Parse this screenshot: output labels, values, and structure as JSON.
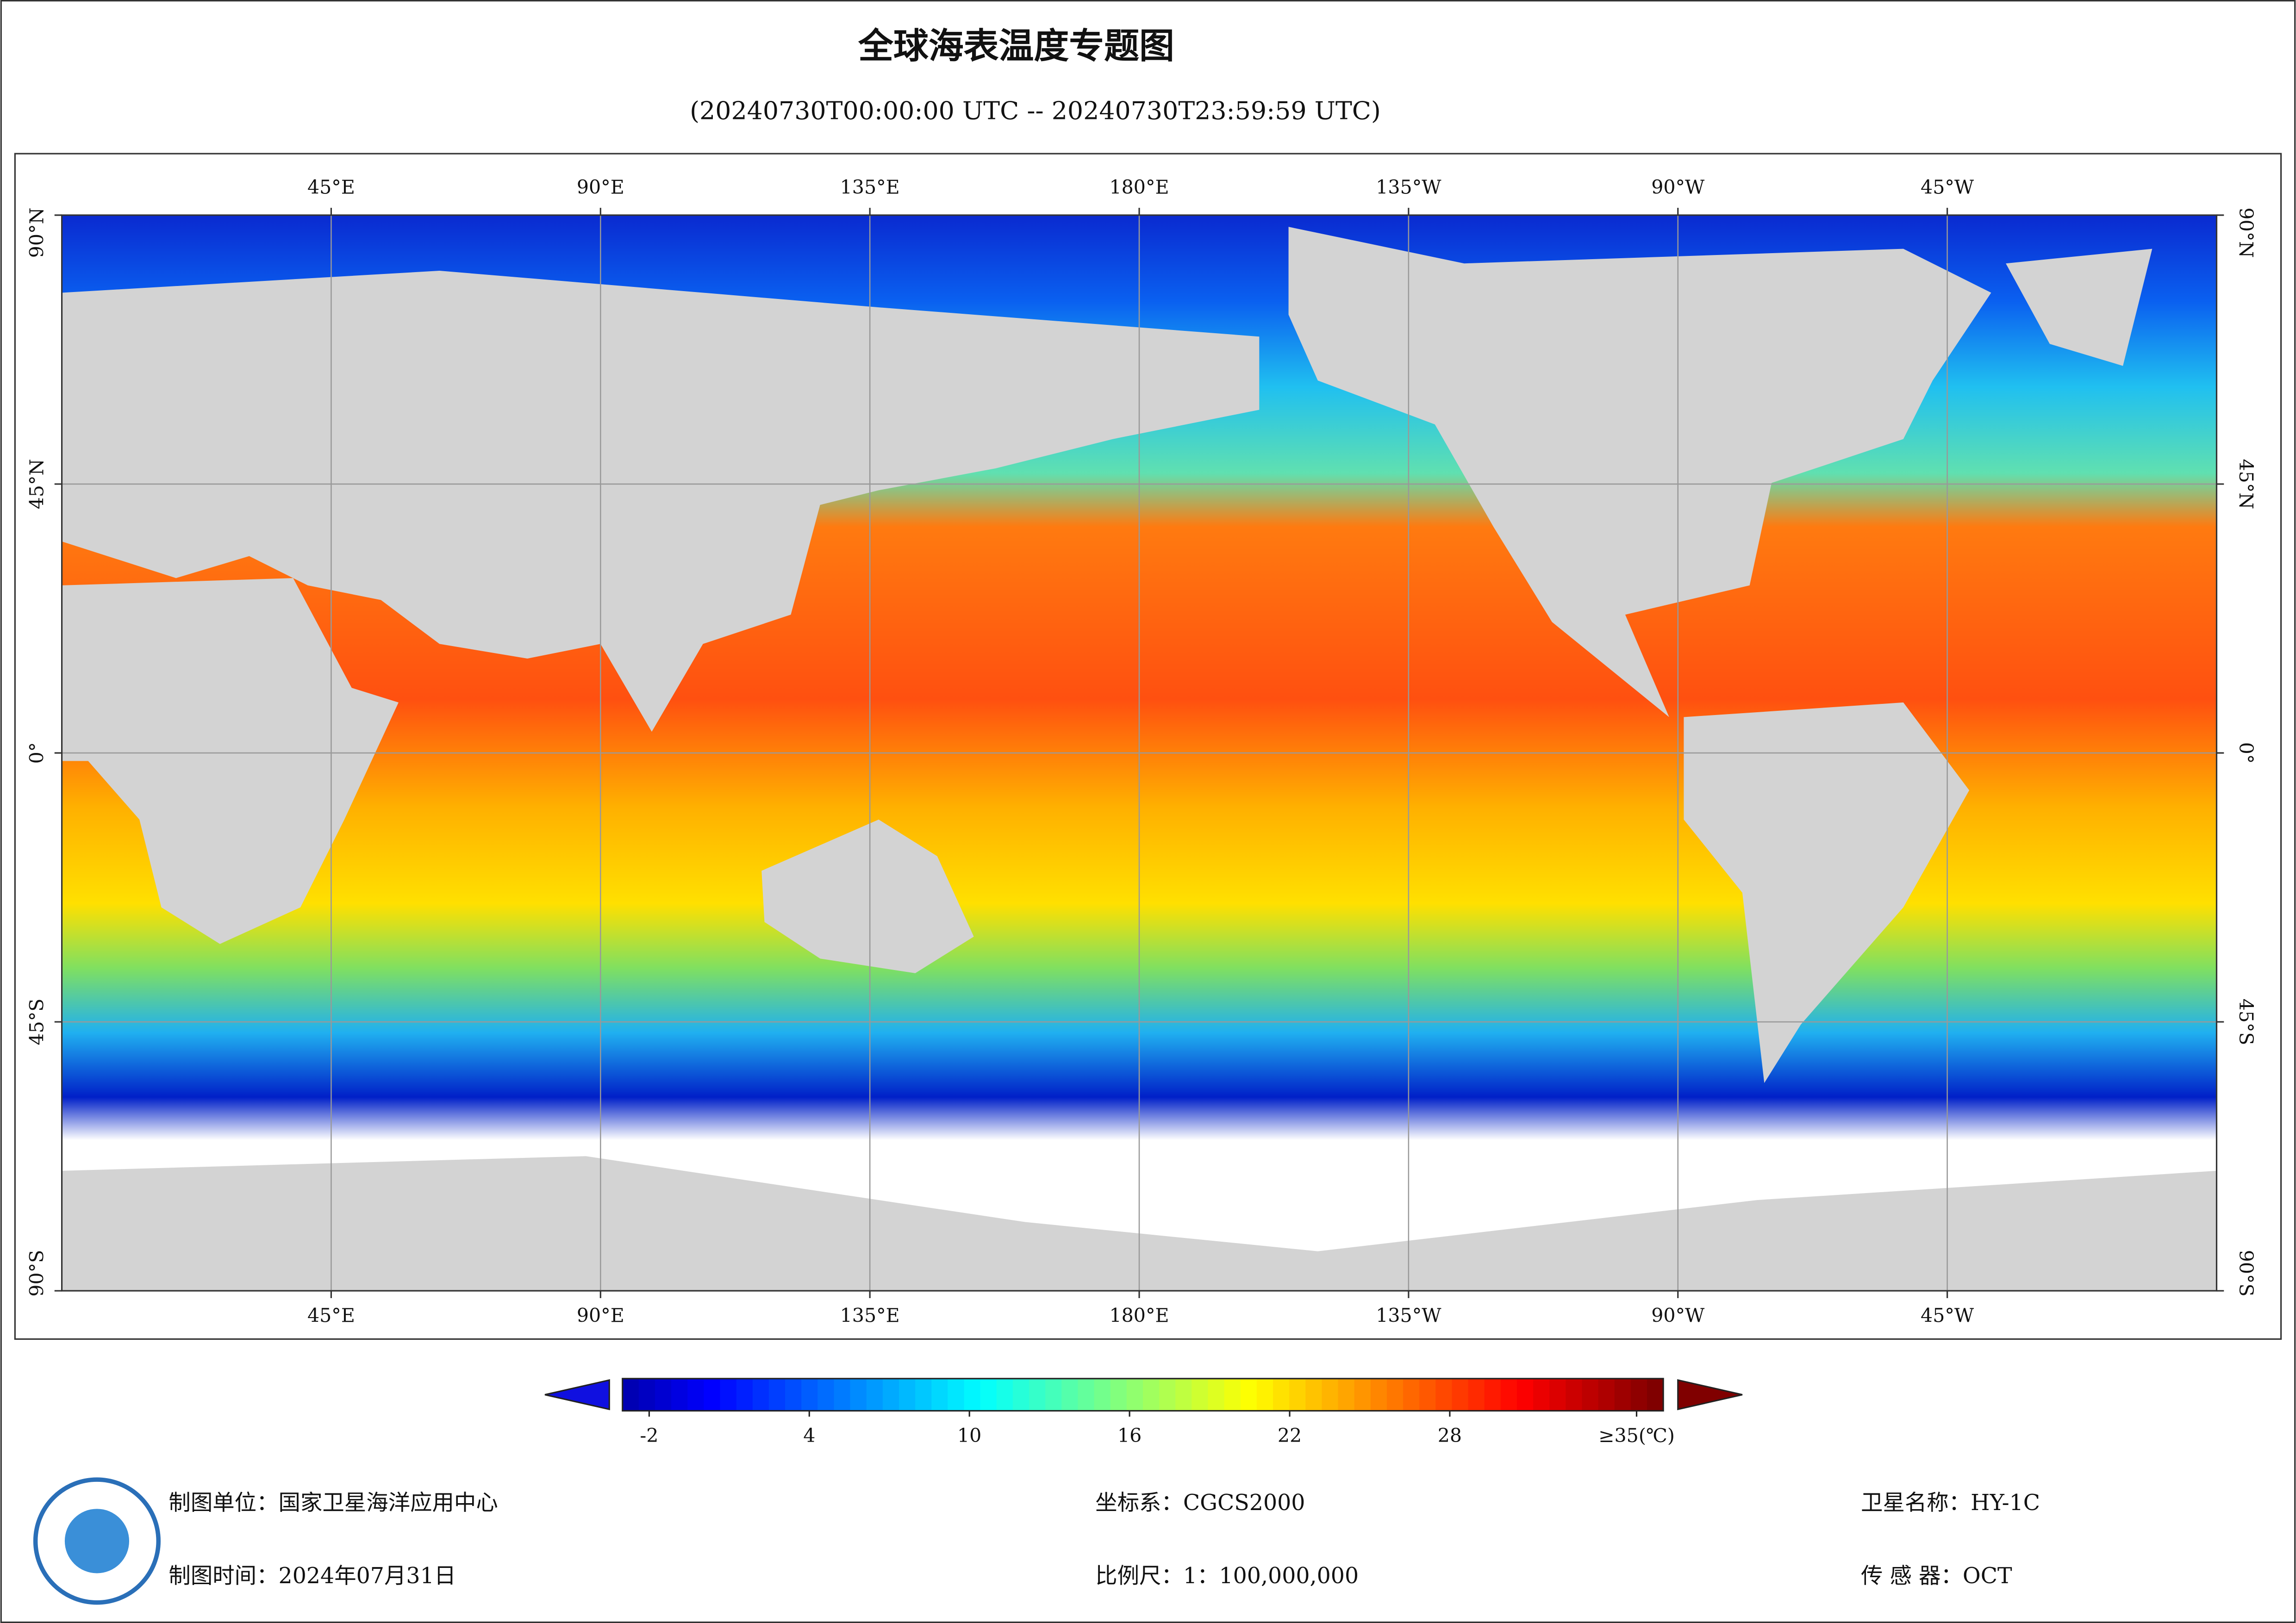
{
  "title": "全球海表温度专题图",
  "subtitle": "(20240730T00:00:00 UTC -- 20240730T23:59:59 UTC)",
  "map": {
    "lon_range": [
      0,
      360
    ],
    "lat_range": [
      -90,
      90
    ],
    "lon_ticks": [
      {
        "value": 45,
        "label": "45°E"
      },
      {
        "value": 90,
        "label": "90°E"
      },
      {
        "value": 135,
        "label": "135°E"
      },
      {
        "value": 180,
        "label": "180°E"
      },
      {
        "value": 225,
        "label": "135°W"
      },
      {
        "value": 270,
        "label": "90°W"
      },
      {
        "value": 315,
        "label": "45°W"
      }
    ],
    "lat_ticks": [
      {
        "value": 90,
        "label": "90°N"
      },
      {
        "value": 45,
        "label": "45°N"
      },
      {
        "value": 0,
        "label": "0°"
      },
      {
        "value": -45,
        "label": "45°S"
      },
      {
        "value": -90,
        "label": "90°S"
      }
    ]
  },
  "colorbar": {
    "lim": [
      -3,
      36
    ],
    "ticks": [
      -2,
      4,
      10,
      16,
      22,
      {
        "value": 35,
        "label": "≥35(℃)"
      }
    ],
    "extra_ticks": [
      28
    ]
  },
  "footer": {
    "unit": {
      "label": "制图单位：",
      "value": "国家卫星海洋应用中心"
    },
    "date": {
      "label": "制图时间：",
      "value": "2024年07月31日"
    },
    "crs": {
      "label": "坐标系：",
      "value": "CGCS2000"
    },
    "scale": {
      "label": "比例尺：",
      "value": "1：100,000,000"
    },
    "satellite": {
      "label": "卫星名称：",
      "value": "HY-1C"
    },
    "sensor": {
      "label": "传 感 器：",
      "value": "OCT"
    }
  }
}
